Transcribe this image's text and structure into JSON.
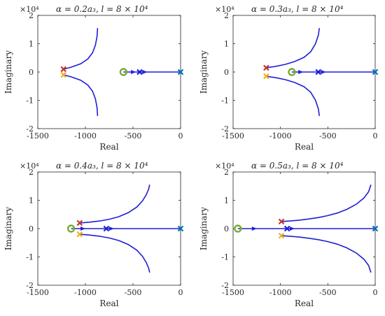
{
  "figure": {
    "colors": {
      "locus": "#1f1fd6",
      "axis": "#262626",
      "zero_marker": "#77ac30",
      "origin_pole": "#0072bd",
      "pole_upper": "#c0392b",
      "pole_lower": "#edb120"
    }
  },
  "chart_data": [
    {
      "type": "scatter",
      "title": "α = 0.2a₃, l = 8 × 10⁴",
      "xlabel": "Real",
      "ylabel": "Imaginary",
      "y_multiplier": "×10⁴",
      "xlim": [
        -1500,
        0
      ],
      "ylim": [
        -2,
        2
      ],
      "xticks": [
        "-1500",
        "-1000",
        "-500",
        "0"
      ],
      "yticks": [
        "-2",
        "-1",
        "0",
        "1",
        "2"
      ],
      "grid": false,
      "series": [
        {
          "role": "locus-upper",
          "points": [
            [
              -1230,
              0.1
            ],
            [
              -1150,
              0.17
            ],
            [
              -1050,
              0.29
            ],
            [
              -975,
              0.46
            ],
            [
              -925,
              0.68
            ],
            [
              -895,
              0.95
            ],
            [
              -878,
              1.25
            ],
            [
              -872,
              1.55
            ]
          ]
        },
        {
          "role": "locus-lower",
          "points": [
            [
              -1230,
              -0.1
            ],
            [
              -1150,
              -0.17
            ],
            [
              -1050,
              -0.29
            ],
            [
              -975,
              -0.46
            ],
            [
              -925,
              -0.68
            ],
            [
              -895,
              -0.95
            ],
            [
              -878,
              -1.25
            ],
            [
              -872,
              -1.55
            ]
          ]
        },
        {
          "role": "locus-real",
          "points": [
            [
              -600,
              0
            ],
            [
              0,
              0
            ]
          ]
        }
      ],
      "markers": [
        {
          "role": "pole-upper",
          "shape": "x",
          "x": -1230,
          "y": 0.1
        },
        {
          "role": "pole-lower",
          "shape": "x",
          "x": -1230,
          "y": -0.1
        },
        {
          "role": "pole-real",
          "shape": "x",
          "x": -430,
          "y": 0
        },
        {
          "role": "pole-origin",
          "shape": "x",
          "x": 0,
          "y": 0
        },
        {
          "role": "zero",
          "shape": "o",
          "x": -600,
          "y": 0
        }
      ],
      "arrows": [
        {
          "x": -470,
          "y": 0
        },
        {
          "x": -350,
          "y": 0
        }
      ]
    },
    {
      "type": "scatter",
      "title": "α = 0.3a₃, l = 8 × 10⁴",
      "xlabel": "Real",
      "ylabel": "Imaginary",
      "y_multiplier": "×10⁴",
      "xlim": [
        -1500,
        0
      ],
      "ylim": [
        -2,
        2
      ],
      "xticks": [
        "-1500",
        "-1000",
        "-500",
        "0"
      ],
      "yticks": [
        "-2",
        "-1",
        "0",
        "1",
        "2"
      ],
      "grid": false,
      "series": [
        {
          "role": "locus-upper",
          "points": [
            [
              -1150,
              0.15
            ],
            [
              -1050,
              0.2
            ],
            [
              -950,
              0.27
            ],
            [
              -850,
              0.37
            ],
            [
              -750,
              0.52
            ],
            [
              -680,
              0.72
            ],
            [
              -630,
              1.0
            ],
            [
              -600,
              1.3
            ],
            [
              -590,
              1.55
            ]
          ]
        },
        {
          "role": "locus-lower",
          "points": [
            [
              -1150,
              -0.15
            ],
            [
              -1050,
              -0.2
            ],
            [
              -950,
              -0.27
            ],
            [
              -850,
              -0.37
            ],
            [
              -750,
              -0.52
            ],
            [
              -680,
              -0.72
            ],
            [
              -630,
              -1.0
            ],
            [
              -600,
              -1.3
            ],
            [
              -590,
              -1.55
            ]
          ]
        },
        {
          "role": "locus-real",
          "points": [
            [
              -880,
              0
            ],
            [
              0,
              0
            ]
          ]
        }
      ],
      "markers": [
        {
          "role": "pole-upper",
          "shape": "x",
          "x": -1150,
          "y": 0.15
        },
        {
          "role": "pole-lower",
          "shape": "x",
          "x": -1150,
          "y": -0.15
        },
        {
          "role": "pole-real",
          "shape": "x",
          "x": -600,
          "y": 0
        },
        {
          "role": "pole-origin",
          "shape": "x",
          "x": 0,
          "y": 0
        },
        {
          "role": "zero",
          "shape": "o",
          "x": -880,
          "y": 0
        }
      ],
      "arrows": [
        {
          "x": -760,
          "y": 0
        },
        {
          "x": -520,
          "y": 0
        }
      ]
    },
    {
      "type": "scatter",
      "title": "α = 0.4a₃, l = 8 × 10⁴",
      "xlabel": "Real",
      "ylabel": "Imaginary",
      "y_multiplier": "×10⁴",
      "xlim": [
        -1500,
        0
      ],
      "ylim": [
        -2,
        2
      ],
      "xticks": [
        "-1500",
        "-1000",
        "-500",
        "0"
      ],
      "yticks": [
        "-2",
        "-1",
        "0",
        "1",
        "2"
      ],
      "grid": false,
      "series": [
        {
          "role": "locus-upper",
          "points": [
            [
              -1060,
              0.2
            ],
            [
              -950,
              0.23
            ],
            [
              -850,
              0.27
            ],
            [
              -750,
              0.33
            ],
            [
              -650,
              0.42
            ],
            [
              -550,
              0.56
            ],
            [
              -460,
              0.76
            ],
            [
              -400,
              0.98
            ],
            [
              -360,
              1.2
            ],
            [
              -335,
              1.4
            ],
            [
              -325,
              1.55
            ]
          ]
        },
        {
          "role": "locus-lower",
          "points": [
            [
              -1060,
              -0.2
            ],
            [
              -950,
              -0.23
            ],
            [
              -850,
              -0.27
            ],
            [
              -750,
              -0.33
            ],
            [
              -650,
              -0.42
            ],
            [
              -550,
              -0.56
            ],
            [
              -460,
              -0.76
            ],
            [
              -400,
              -0.98
            ],
            [
              -360,
              -1.2
            ],
            [
              -335,
              -1.4
            ],
            [
              -325,
              -1.55
            ]
          ]
        },
        {
          "role": "locus-real",
          "points": [
            [
              -1150,
              0
            ],
            [
              0,
              0
            ]
          ]
        }
      ],
      "markers": [
        {
          "role": "pole-upper",
          "shape": "x",
          "x": -1060,
          "y": 0.2
        },
        {
          "role": "pole-lower",
          "shape": "x",
          "x": -1060,
          "y": -0.2
        },
        {
          "role": "pole-real",
          "shape": "x",
          "x": -780,
          "y": 0
        },
        {
          "role": "pole-origin",
          "shape": "x",
          "x": 0,
          "y": 0
        },
        {
          "role": "zero",
          "shape": "o",
          "x": -1150,
          "y": 0
        }
      ],
      "arrows": [
        {
          "x": -1000,
          "y": 0
        },
        {
          "x": -700,
          "y": 0
        }
      ]
    },
    {
      "type": "scatter",
      "title": "α = 0.5a₃, l = 8 × 10⁴",
      "xlabel": "Real",
      "ylabel": "Imaginary",
      "y_multiplier": "×10⁴",
      "xlim": [
        -1500,
        0
      ],
      "ylim": [
        -2,
        2
      ],
      "xticks": [
        "-1500",
        "-1000",
        "-500",
        "0"
      ],
      "yticks": [
        "-2",
        "-1",
        "0",
        "1",
        "2"
      ],
      "grid": false,
      "series": [
        {
          "role": "locus-upper",
          "points": [
            [
              -990,
              0.25
            ],
            [
              -900,
              0.27
            ],
            [
              -800,
              0.3
            ],
            [
              -700,
              0.34
            ],
            [
              -600,
              0.39
            ],
            [
              -500,
              0.46
            ],
            [
              -400,
              0.55
            ],
            [
              -300,
              0.68
            ],
            [
              -200,
              0.86
            ],
            [
              -120,
              1.08
            ],
            [
              -70,
              1.3
            ],
            [
              -45,
              1.55
            ]
          ]
        },
        {
          "role": "locus-lower",
          "points": [
            [
              -990,
              -0.25
            ],
            [
              -900,
              -0.27
            ],
            [
              -800,
              -0.3
            ],
            [
              -700,
              -0.34
            ],
            [
              -600,
              -0.39
            ],
            [
              -500,
              -0.46
            ],
            [
              -400,
              -0.55
            ],
            [
              -300,
              -0.68
            ],
            [
              -200,
              -0.86
            ],
            [
              -120,
              -1.08
            ],
            [
              -70,
              -1.3
            ],
            [
              -45,
              -1.55
            ]
          ]
        },
        {
          "role": "locus-real",
          "points": [
            [
              -1450,
              0
            ],
            [
              0,
              0
            ]
          ]
        }
      ],
      "markers": [
        {
          "role": "pole-upper",
          "shape": "x",
          "x": -990,
          "y": 0.25
        },
        {
          "role": "pole-lower",
          "shape": "x",
          "x": -990,
          "y": -0.25
        },
        {
          "role": "pole-real",
          "shape": "x",
          "x": -930,
          "y": 0
        },
        {
          "role": "pole-origin",
          "shape": "x",
          "x": 0,
          "y": 0
        },
        {
          "role": "zero",
          "shape": "o",
          "x": -1450,
          "y": 0
        }
      ],
      "arrows": [
        {
          "x": -1250,
          "y": 0
        },
        {
          "x": -850,
          "y": 0
        }
      ]
    }
  ]
}
